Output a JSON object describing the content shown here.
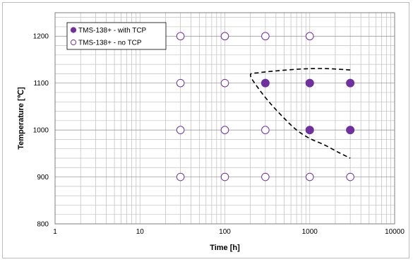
{
  "chart_data": {
    "type": "scatter",
    "xlabel": "Time [h]",
    "ylabel": "Temperature [℃]",
    "xscale": "log",
    "xlim": [
      1,
      10000
    ],
    "ylim": [
      800,
      1250
    ],
    "xticks": [
      1,
      10,
      100,
      1000,
      10000
    ],
    "xtick_labels": [
      "1",
      "10",
      "100",
      "1000",
      "10000"
    ],
    "yticks": [
      800,
      900,
      1000,
      1100,
      1200
    ],
    "ytick_labels": [
      "800",
      "900",
      "1000",
      "1100",
      "1200"
    ],
    "grid": true,
    "legend_position": "top-left",
    "series": [
      {
        "name": "TMS-138+ - with TCP",
        "marker": "filled-circle",
        "color": "#7030a0",
        "points": [
          [
            300,
            1100
          ],
          [
            1000,
            1100
          ],
          [
            3000,
            1100
          ],
          [
            1000,
            1000
          ],
          [
            3000,
            1000
          ]
        ]
      },
      {
        "name": "TMS-138+ - no TCP",
        "marker": "open-circle",
        "color": "#7030a0",
        "points": [
          [
            30,
            1200
          ],
          [
            100,
            1200
          ],
          [
            300,
            1200
          ],
          [
            1000,
            1200
          ],
          [
            30,
            1100
          ],
          [
            100,
            1100
          ],
          [
            30,
            1000
          ],
          [
            100,
            1000
          ],
          [
            300,
            1000
          ],
          [
            30,
            900
          ],
          [
            100,
            900
          ],
          [
            300,
            900
          ],
          [
            1000,
            900
          ],
          [
            3000,
            900
          ]
        ]
      }
    ],
    "annotation_curve": {
      "style": "dashed",
      "color": "#000000",
      "points": [
        [
          3000,
          1128
        ],
        [
          1500,
          1131
        ],
        [
          800,
          1130
        ],
        [
          400,
          1126
        ],
        [
          250,
          1122
        ],
        [
          200,
          1117
        ],
        [
          250,
          1088
        ],
        [
          350,
          1055
        ],
        [
          500,
          1025
        ],
        [
          700,
          1000
        ],
        [
          1000,
          982
        ],
        [
          1500,
          968
        ],
        [
          2200,
          952
        ],
        [
          3000,
          940
        ]
      ]
    }
  }
}
